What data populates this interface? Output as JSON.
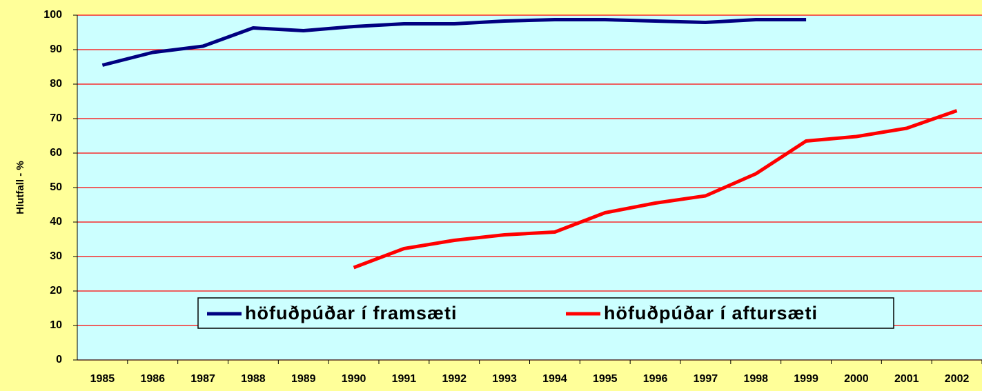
{
  "chart_data": {
    "type": "line",
    "y_label": "Hlutfall - %",
    "categories": [
      "1985",
      "1986",
      "1987",
      "1988",
      "1989",
      "1990",
      "1991",
      "1992",
      "1993",
      "1994",
      "1995",
      "1996",
      "1997",
      "1998",
      "1999",
      "2000",
      "2001",
      "2002"
    ],
    "series": [
      {
        "name": "höfuðpúðar í framsæti",
        "color": "#000080",
        "values": [
          85.5,
          89.2,
          91,
          96.3,
          95.5,
          96.7,
          97.5,
          97.5,
          98.3,
          98.7,
          98.7,
          98.3,
          97.9,
          98.7,
          98.7,
          null,
          null,
          null
        ]
      },
      {
        "name": "höfuðpúðar í aftursæti",
        "color": "#FF0000",
        "values": [
          null,
          null,
          null,
          null,
          null,
          26.8,
          32.3,
          34.7,
          36.3,
          37.1,
          42.7,
          45.5,
          47.6,
          54,
          63.5,
          64.8,
          67.2,
          72.3
        ]
      }
    ],
    "ylim": [
      0,
      100
    ],
    "yticks": [
      0,
      10,
      20,
      30,
      40,
      50,
      60,
      70,
      80,
      90,
      100
    ],
    "grid": true,
    "grid_color": "#FF0000",
    "plot_background": "#CCFFFF"
  }
}
